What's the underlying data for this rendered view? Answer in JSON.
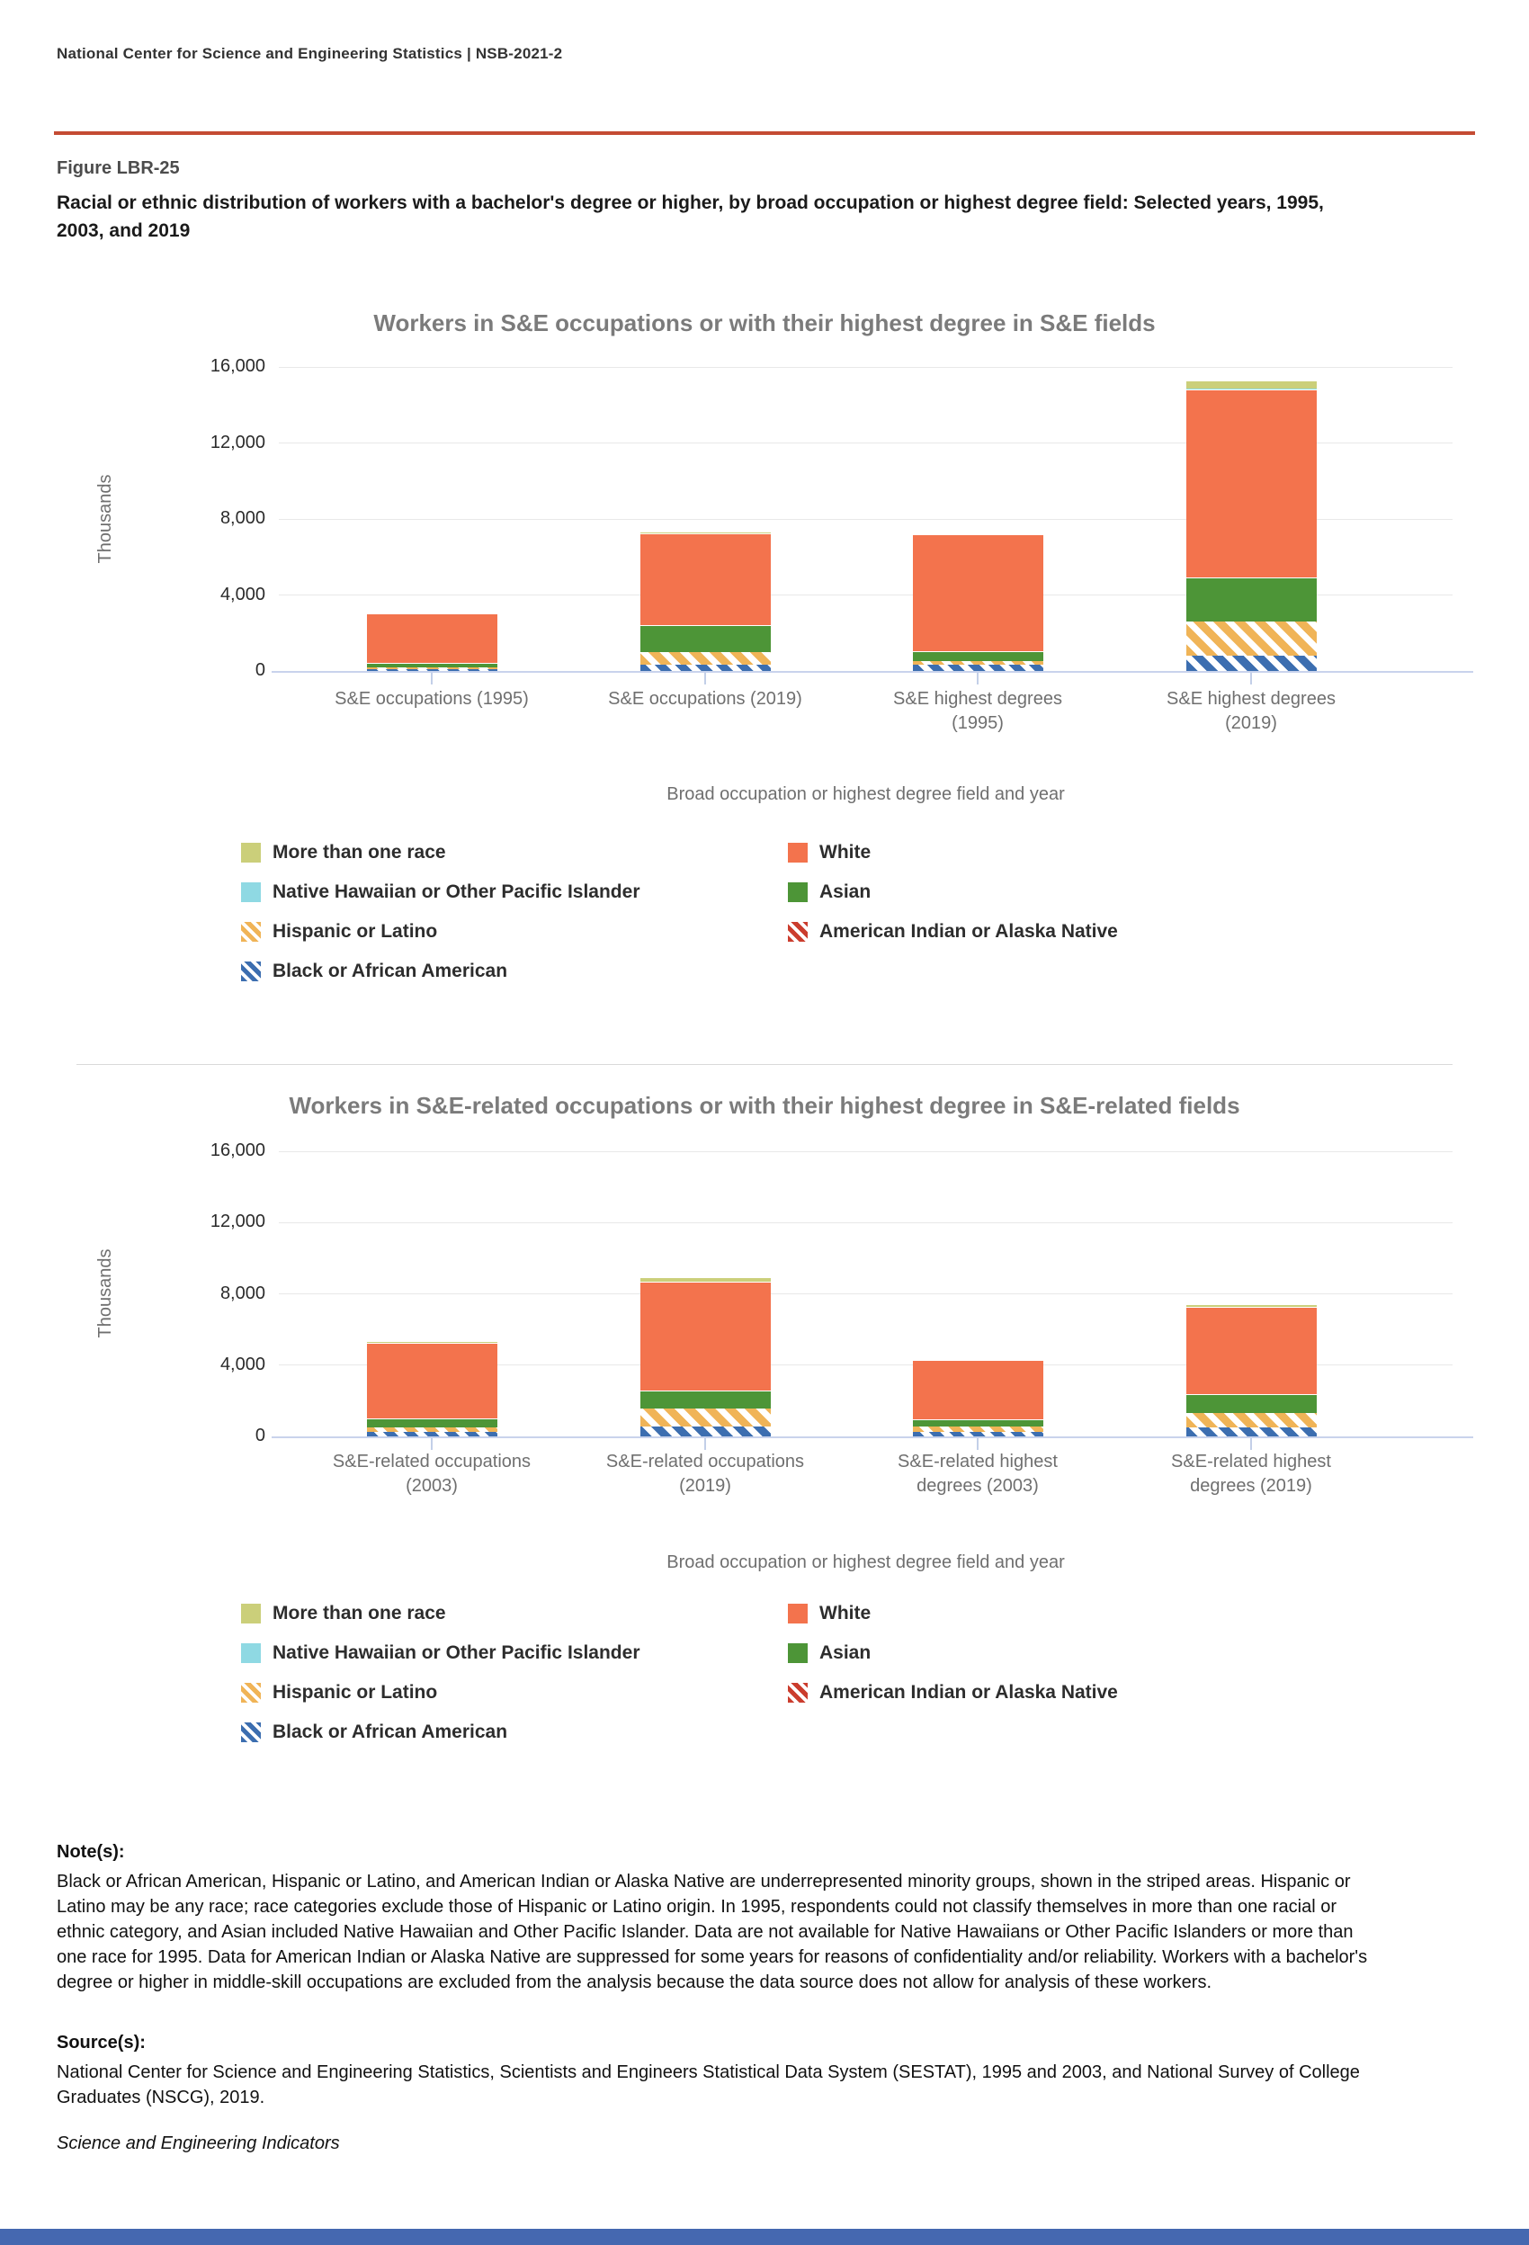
{
  "page": {
    "header": "National Center for Science and Engineering Statistics  |  NSB-2021-2",
    "figure_label": "Figure LBR-25",
    "figure_title": "Racial or ethnic distribution of workers with a bachelor's degree or higher, by broad occupation or highest degree field: Selected years, 1995, 2003, and 2019",
    "notes_label": "Note(s):",
    "notes": "Black or African American, Hispanic or Latino, and American Indian or Alaska Native are underrepresented minority groups, shown in the striped areas. Hispanic or Latino may be any race; race categories exclude those of Hispanic or Latino origin. In 1995, respondents could not classify themselves in more than one racial or ethnic category, and Asian included Native Hawaiian and Other Pacific Islander. Data are not available for Native Hawaiians or Other Pacific Islanders or more than one race for 1995. Data for American Indian or Alaska Native are suppressed for some years for reasons of confidentiality and/or reliability. Workers with a bachelor's degree or higher in middle-skill occupations are excluded from the analysis because the data source does not allow for analysis of these workers.",
    "source_label": "Source(s):",
    "source": "National Center for Science and Engineering Statistics, Scientists and Engineers Statistical Data System (SESTAT), 1995 and 2003, and National Survey of College Graduates (NSCG), 2019.",
    "footer_italic": "Science and Engineering Indicators"
  },
  "colors": {
    "accent_rule": "#C44B33",
    "footer_bar": "#4568B0",
    "grid_line": "#E8E8E8",
    "axis_line": "#C9D3EC",
    "chart_title_gray": "#7B7B7B"
  },
  "series_styles": {
    "More than one race": {
      "color": "#CBCF7A",
      "pattern": "solid"
    },
    "Native Hawaiian or Other Pacific Islander": {
      "color": "#8FD9E3",
      "pattern": "solid"
    },
    "Hispanic or Latino": {
      "color": "#F0B457",
      "pattern": "striped"
    },
    "Black or African American": {
      "color": "#3C6EB0",
      "pattern": "striped"
    },
    "White": {
      "color": "#F3734D",
      "pattern": "solid"
    },
    "Asian": {
      "color": "#4D9537",
      "pattern": "solid"
    },
    "American Indian or Alaska Native": {
      "color": "#CB3D2E",
      "pattern": "striped"
    }
  },
  "legend": {
    "column1": [
      "More than one race",
      "Native Hawaiian or Other Pacific Islander",
      "Hispanic or Latino",
      "Black or African American"
    ],
    "column2": [
      "White",
      "Asian",
      "American Indian or Alaska Native"
    ]
  },
  "chart_data": [
    {
      "type": "bar",
      "stacked": true,
      "stack_order": "bottom-to-top",
      "title": "Workers in S&E occupations or with their highest degree in S&E fields",
      "ylabel": "Thousands",
      "xlabel": "Broad occupation or highest degree field and year",
      "units": "thousands of workers",
      "ylim": [
        0,
        16000
      ],
      "grid": true,
      "legend_position": "bottom",
      "yticks": [
        {
          "value": 0,
          "label": "0"
        },
        {
          "value": 4000,
          "label": "4,000"
        },
        {
          "value": 8000,
          "label": "8,000"
        },
        {
          "value": 12000,
          "label": "12,000"
        },
        {
          "value": 16000,
          "label": "16,000"
        }
      ],
      "categories": [
        "S&E occupations (1995)",
        "S&E occupations (2019)",
        "S&E highest degrees (1995)",
        "S&E highest degrees (2019)"
      ],
      "category_labels": [
        "S&E occupations (1995)",
        "S&E occupations (2019)",
        "S&E highest degrees\n(1995)",
        "S&E highest degrees\n(2019)"
      ],
      "series": [
        {
          "name": "American Indian or Alaska Native",
          "values": [
            0,
            15,
            0,
            15
          ]
        },
        {
          "name": "Black or African American",
          "values": [
            90,
            330,
            350,
            790
          ]
        },
        {
          "name": "Hispanic or Latino",
          "values": [
            90,
            660,
            150,
            1810
          ]
        },
        {
          "name": "Asian",
          "values": [
            240,
            1400,
            520,
            2320
          ]
        },
        {
          "name": "White",
          "values": [
            2630,
            4820,
            6160,
            9900
          ]
        },
        {
          "name": "Native Hawaiian or Other Pacific Islander",
          "values": [
            0,
            20,
            0,
            25
          ]
        },
        {
          "name": "More than one race",
          "values": [
            0,
            70,
            0,
            425
          ]
        }
      ]
    },
    {
      "type": "bar",
      "stacked": true,
      "stack_order": "bottom-to-top",
      "title": "Workers in S&E-related occupations or with their highest degree in S&E-related fields",
      "ylabel": "Thousands",
      "xlabel": "Broad occupation or highest degree field and year",
      "units": "thousands of workers",
      "ylim": [
        0,
        16000
      ],
      "grid": true,
      "legend_position": "bottom",
      "yticks": [
        {
          "value": 0,
          "label": "0"
        },
        {
          "value": 4000,
          "label": "4,000"
        },
        {
          "value": 8000,
          "label": "8,000"
        },
        {
          "value": 12000,
          "label": "12,000"
        },
        {
          "value": 16000,
          "label": "16,000"
        }
      ],
      "categories": [
        "S&E-related occupations (2003)",
        "S&E-related occupations (2019)",
        "S&E-related highest degrees (2003)",
        "S&E-related highest degrees (2019)"
      ],
      "category_labels": [
        "S&E-related occupations\n(2003)",
        "S&E-related occupations\n(2019)",
        "S&E-related highest\ndegrees (2003)",
        "S&E-related highest\ndegrees (2019)"
      ],
      "series": [
        {
          "name": "American Indian or Alaska Native",
          "values": [
            0,
            15,
            0,
            15
          ]
        },
        {
          "name": "Black or African American",
          "values": [
            260,
            530,
            260,
            470
          ]
        },
        {
          "name": "Hispanic or Latino",
          "values": [
            230,
            1020,
            290,
            830
          ]
        },
        {
          "name": "Asian",
          "values": [
            530,
            1000,
            430,
            1040
          ]
        },
        {
          "name": "White",
          "values": [
            4240,
            6100,
            3290,
            4900
          ]
        },
        {
          "name": "Native Hawaiian or Other Pacific Islander",
          "values": [
            10,
            20,
            10,
            20
          ]
        },
        {
          "name": "More than one race",
          "values": [
            40,
            230,
            30,
            160
          ]
        }
      ]
    }
  ]
}
